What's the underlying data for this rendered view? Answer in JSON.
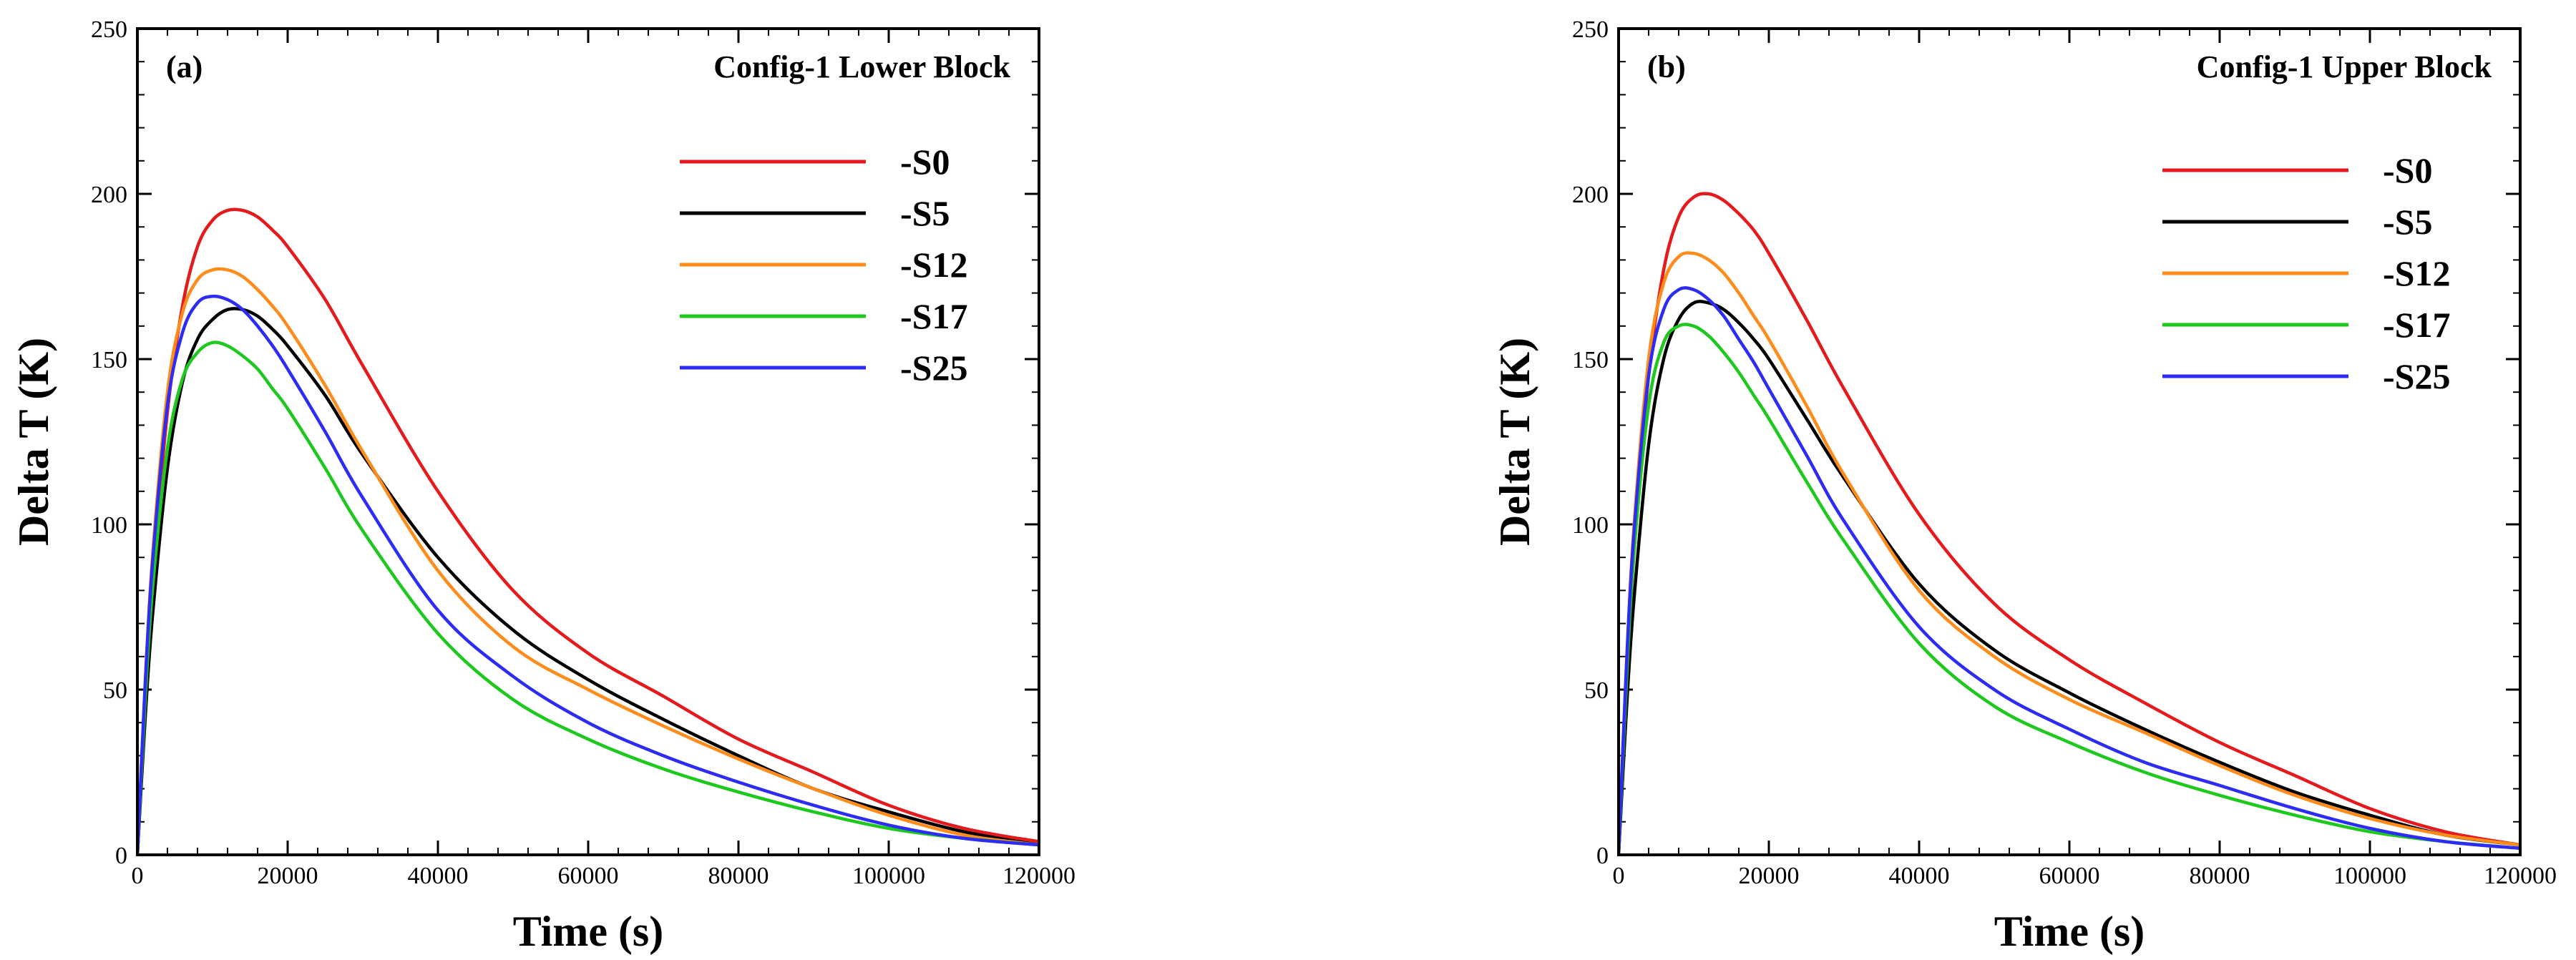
{
  "chart_data": [
    {
      "type": "line",
      "panel_label": "(a)",
      "title": "Config-1 Lower Block",
      "xlabel": "Time (s)",
      "ylabel": "Delta T (K)",
      "xlim": [
        0,
        120000
      ],
      "ylim": [
        0,
        250
      ],
      "xticks": [
        0,
        20000,
        40000,
        60000,
        80000,
        100000,
        120000
      ],
      "xtick_labels": [
        "0",
        "20000",
        "40000",
        "60000",
        "80000",
        "100000",
        "120000"
      ],
      "yticks": [
        0,
        50,
        100,
        150,
        200,
        250
      ],
      "ytick_labels": [
        "0",
        "50",
        "100",
        "150",
        "200",
        "250"
      ],
      "legend_position": "top-right",
      "x": [
        0,
        1000,
        2000,
        4000,
        6000,
        8000,
        10000,
        12000,
        14000,
        16000,
        18000,
        20000,
        25000,
        30000,
        40000,
        50000,
        60000,
        70000,
        80000,
        90000,
        100000,
        110000,
        120000
      ],
      "series": [
        {
          "name": "-S0",
          "color": "#e41a1c",
          "values": [
            0,
            45,
            82,
            134,
            166,
            184,
            192,
            195,
            195,
            193,
            189,
            184,
            168,
            148,
            110,
            80,
            61,
            48,
            35,
            25,
            15,
            8,
            4
          ]
        },
        {
          "name": "-S5",
          "color": "#000000",
          "values": [
            0,
            40,
            72,
            117,
            143,
            156,
            162,
            165,
            165,
            163,
            159,
            154,
            139,
            121,
            90,
            68,
            53,
            41,
            30,
            20,
            13,
            7,
            3
          ]
        },
        {
          "name": "-S12",
          "color": "#ff8c1a",
          "values": [
            0,
            50,
            90,
            140,
            164,
            174,
            177,
            177,
            175,
            171,
            166,
            160,
            142,
            122,
            86,
            63,
            50,
            39,
            29,
            20,
            12,
            6,
            3
          ]
        },
        {
          "name": "-S17",
          "color": "#1ec81e",
          "values": [
            0,
            45,
            80,
            123,
            144,
            152,
            155,
            154,
            151,
            147,
            141,
            135,
            117,
            98,
            67,
            47,
            35,
            26,
            19,
            13,
            8,
            5,
            3
          ]
        },
        {
          "name": "-S25",
          "color": "#2c2cf5",
          "values": [
            0,
            50,
            88,
            136,
            158,
            167,
            169,
            168,
            165,
            160,
            154,
            147,
            128,
            108,
            74,
            54,
            40,
            30,
            22,
            15,
            9,
            5,
            3
          ]
        }
      ]
    },
    {
      "type": "line",
      "panel_label": "(b)",
      "title": "Config-1 Upper Block",
      "xlabel": "Time (s)",
      "ylabel": "Delta T (K)",
      "xlim": [
        0,
        120000
      ],
      "ylim": [
        0,
        250
      ],
      "xticks": [
        0,
        20000,
        40000,
        60000,
        80000,
        100000,
        120000
      ],
      "xtick_labels": [
        "0",
        "20000",
        "40000",
        "60000",
        "80000",
        "100000",
        "120000"
      ],
      "yticks": [
        0,
        50,
        100,
        150,
        200,
        250
      ],
      "ytick_labels": [
        "0",
        "50",
        "100",
        "150",
        "200",
        "250"
      ],
      "legend_position": "top-right",
      "x": [
        0,
        1000,
        2000,
        4000,
        6000,
        8000,
        10000,
        12000,
        14000,
        16000,
        18000,
        20000,
        25000,
        30000,
        40000,
        50000,
        60000,
        70000,
        80000,
        90000,
        100000,
        110000,
        120000
      ],
      "series": [
        {
          "name": "-S0",
          "color": "#e41a1c",
          "values": [
            0,
            50,
            90,
            145,
            177,
            193,
            199,
            200,
            198,
            194,
            189,
            182,
            162,
            141,
            103,
            76,
            59,
            46,
            34,
            24,
            14,
            7,
            3
          ]
        },
        {
          "name": "-S5",
          "color": "#000000",
          "values": [
            0,
            42,
            76,
            124,
            150,
            162,
            167,
            167,
            165,
            161,
            156,
            150,
            132,
            114,
            82,
            62,
            49,
            38,
            28,
            19,
            12,
            6,
            3
          ]
        },
        {
          "name": "-S12",
          "color": "#ff8c1a",
          "values": [
            0,
            55,
            98,
            150,
            173,
            181,
            182,
            180,
            176,
            170,
            163,
            156,
            136,
            115,
            80,
            60,
            47,
            37,
            27,
            18,
            11,
            6,
            3
          ]
        },
        {
          "name": "-S17",
          "color": "#1ec81e",
          "values": [
            0,
            50,
            90,
            136,
            155,
            160,
            160,
            157,
            152,
            146,
            139,
            132,
            113,
            95,
            64,
            45,
            34,
            25,
            18,
            12,
            7,
            4,
            2
          ]
        },
        {
          "name": "-S25",
          "color": "#2c2cf5",
          "values": [
            0,
            55,
            96,
            145,
            165,
            171,
            171,
            168,
            163,
            156,
            149,
            141,
            121,
            101,
            69,
            50,
            38,
            28,
            21,
            14,
            8,
            4,
            2
          ]
        }
      ]
    }
  ]
}
